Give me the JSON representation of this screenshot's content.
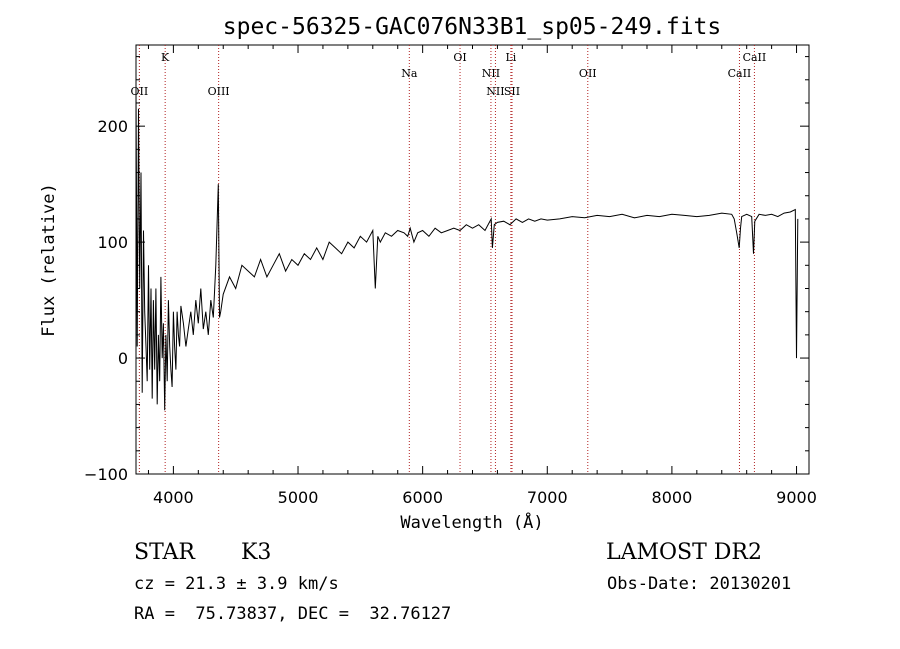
{
  "chart_data": {
    "type": "line",
    "title": "spec-56325-GAC076N33B1_sp05-249.fits",
    "xlabel": "Wavelength (Å)",
    "ylabel": "Flux (relative)",
    "xlim": [
      3700,
      9100
    ],
    "ylim": [
      -100,
      270
    ],
    "x_ticks": [
      4000,
      5000,
      6000,
      7000,
      8000,
      9000
    ],
    "y_ticks": [
      -100,
      0,
      100,
      200
    ],
    "x_tick_labels": [
      "4000",
      "5000",
      "6000",
      "7000",
      "8000",
      "9000"
    ],
    "y_tick_labels": [
      "−100",
      "0",
      "100",
      "200"
    ],
    "grid": false,
    "line_color": "#000000",
    "marker_line_color": "#b22222",
    "spectral_lines": [
      {
        "label": "OII",
        "x": 3727,
        "row": "low"
      },
      {
        "label": "K",
        "x": 3934,
        "row": "high"
      },
      {
        "label": "OIII",
        "x": 4363,
        "row": "low"
      },
      {
        "label": "Na",
        "x": 5893,
        "row": "mid"
      },
      {
        "label": "OI",
        "x": 6300,
        "row": "high"
      },
      {
        "label": "NII",
        "x": 6548,
        "row": "mid"
      },
      {
        "label": "NII",
        "x": 6584,
        "row": "low"
      },
      {
        "label": "Li",
        "x": 6708,
        "row": "high"
      },
      {
        "label": "SII",
        "x": 6717,
        "row": "low"
      },
      {
        "label": "OII",
        "x": 7325,
        "row": "mid"
      },
      {
        "label": "CaII",
        "x": 8542,
        "row": "mid"
      },
      {
        "label": "CaII",
        "x": 8662,
        "row": "high"
      }
    ],
    "series": [
      {
        "x": [
          3700,
          3710,
          3720,
          3730,
          3740,
          3750,
          3760,
          3770,
          3780,
          3790,
          3800,
          3810,
          3820,
          3830,
          3840,
          3850,
          3860,
          3870,
          3880,
          3890,
          3900,
          3910,
          3920,
          3930,
          3940,
          3950,
          3960,
          3970,
          3980,
          3990,
          4000,
          4010,
          4020,
          4030,
          4040,
          4050,
          4060,
          4080,
          4100,
          4120,
          4140,
          4160,
          4180,
          4200,
          4220,
          4240,
          4260,
          4280,
          4300,
          4320,
          4340,
          4360,
          4370,
          4380,
          4400,
          4450,
          4500,
          4550,
          4600,
          4650,
          4700,
          4750,
          4800,
          4850,
          4900,
          4950,
          5000,
          5050,
          5100,
          5150,
          5200,
          5250,
          5300,
          5350,
          5400,
          5450,
          5500,
          5550,
          5600,
          5620,
          5640,
          5660,
          5700,
          5750,
          5800,
          5850,
          5880,
          5900,
          5930,
          5960,
          6000,
          6050,
          6100,
          6150,
          6200,
          6250,
          6300,
          6350,
          6400,
          6450,
          6500,
          6550,
          6560,
          6575,
          6600,
          6650,
          6700,
          6750,
          6800,
          6850,
          6900,
          6950,
          7000,
          7100,
          7200,
          7300,
          7400,
          7500,
          7600,
          7700,
          7800,
          7900,
          8000,
          8100,
          8200,
          8300,
          8400,
          8480,
          8500,
          8520,
          8540,
          8550,
          8560,
          8600,
          8640,
          8655,
          8665,
          8700,
          8750,
          8800,
          8850,
          8900,
          8950,
          8990,
          9000,
          9010
        ],
        "y": [
          230,
          10,
          215,
          60,
          160,
          -30,
          110,
          40,
          10,
          -20,
          80,
          -10,
          60,
          -35,
          50,
          -10,
          60,
          -40,
          20,
          -20,
          70,
          0,
          30,
          -45,
          20,
          -20,
          50,
          10,
          -10,
          -25,
          40,
          10,
          -10,
          40,
          20,
          10,
          45,
          30,
          10,
          25,
          40,
          20,
          50,
          30,
          60,
          25,
          40,
          20,
          50,
          35,
          80,
          150,
          35,
          40,
          55,
          70,
          60,
          80,
          75,
          70,
          85,
          70,
          80,
          90,
          75,
          85,
          80,
          90,
          85,
          95,
          85,
          100,
          95,
          90,
          100,
          95,
          105,
          100,
          110,
          60,
          105,
          100,
          108,
          105,
          110,
          108,
          105,
          112,
          100,
          108,
          110,
          105,
          112,
          108,
          110,
          112,
          110,
          115,
          112,
          115,
          110,
          120,
          95,
          115,
          117,
          118,
          115,
          120,
          117,
          120,
          118,
          120,
          119,
          120,
          122,
          121,
          123,
          122,
          124,
          121,
          123,
          122,
          124,
          123,
          122,
          123,
          125,
          124,
          120,
          108,
          95,
          112,
          122,
          124,
          122,
          90,
          118,
          124,
          123,
          124,
          122,
          125,
          126,
          128,
          0,
          120
        ]
      }
    ]
  },
  "info": {
    "object_class": "STAR",
    "subclass": "K3",
    "survey": "LAMOST DR2",
    "redshift": "cz = 21.3 ± 3.9 km/s",
    "obs_date": "Obs-Date: 20130201",
    "coords": "RA =  75.73837, DEC =  32.76127"
  }
}
